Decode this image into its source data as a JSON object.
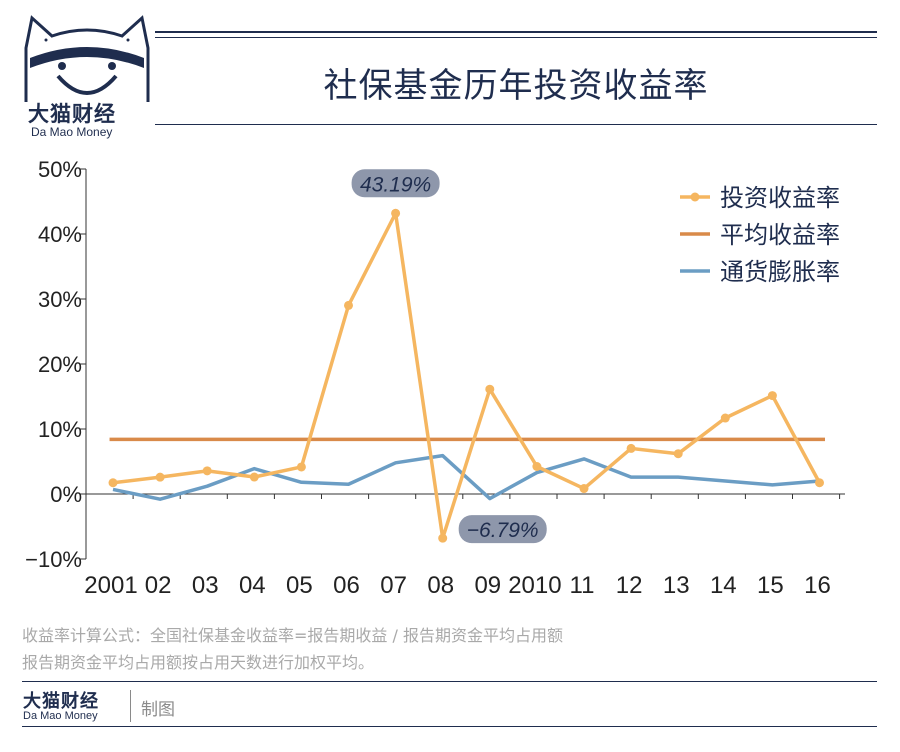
{
  "brand": {
    "name_cn": "大猫财经",
    "name_en": "Da Mao Money"
  },
  "title": "社保基金历年投资收益率",
  "footer": {
    "brand_cn": "大猫财经",
    "brand_en": "Da Mao Money",
    "made": "制图"
  },
  "formula": {
    "line1": "收益率计算公式：全国社保基金收益率=报告期收益 / 报告期资金平均占用额",
    "line2": "报告期资金平均占用额按占用天数进行加权平均。"
  },
  "colors": {
    "navy": "#1f2d4e",
    "orange": "#f5b660",
    "avg": "#d98a49",
    "blue": "#6b9dc4",
    "callout": "#8e97ab"
  },
  "chart_data": {
    "type": "line",
    "title": "社保基金历年投资收益率",
    "categories": [
      "2001",
      "02",
      "03",
      "04",
      "05",
      "06",
      "07",
      "08",
      "09",
      "2010",
      "11",
      "12",
      "13",
      "14",
      "15",
      "16"
    ],
    "yticks": [
      "50%",
      "40%",
      "30%",
      "20%",
      "10%",
      "0%",
      "−10%"
    ],
    "ylim": [
      -10,
      50
    ],
    "series": [
      {
        "name": "投资收益率",
        "values": [
          1.73,
          2.59,
          3.56,
          2.61,
          4.16,
          29.01,
          43.19,
          -6.79,
          16.12,
          4.23,
          0.84,
          7.01,
          6.2,
          11.69,
          15.14,
          1.73
        ]
      },
      {
        "name": "平均收益率",
        "values": [
          8.4,
          8.4,
          8.4,
          8.4,
          8.4,
          8.4,
          8.4,
          8.4,
          8.4,
          8.4,
          8.4,
          8.4,
          8.4,
          8.4,
          8.4,
          8.4
        ]
      },
      {
        "name": "通货膨胀率",
        "values": [
          0.7,
          -0.8,
          1.2,
          3.9,
          1.8,
          1.5,
          4.8,
          5.9,
          -0.7,
          3.3,
          5.4,
          2.6,
          2.6,
          2.0,
          1.4,
          2.0
        ]
      }
    ],
    "annotations": [
      {
        "label": "43.19%",
        "index": 6,
        "value": 43.19
      },
      {
        "label": "−6.79%",
        "index": 7,
        "value": -6.79
      }
    ],
    "legend": "top-right"
  }
}
